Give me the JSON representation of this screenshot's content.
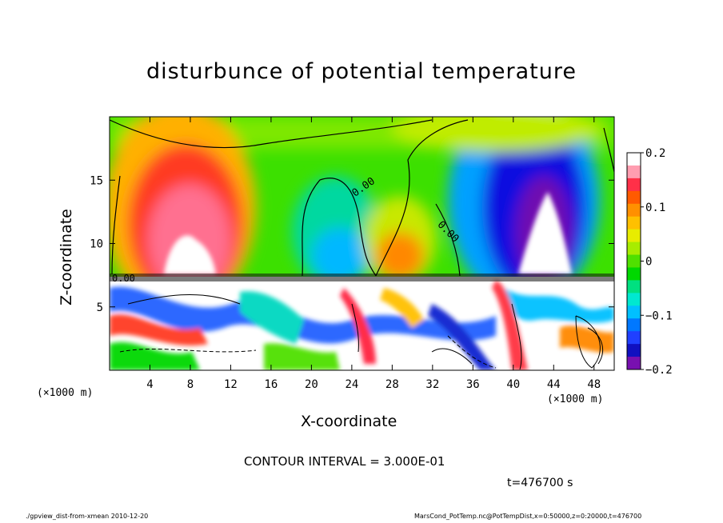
{
  "chart_data": {
    "type": "heatmap",
    "title": "disturbunce of potential temperature",
    "xlabel": "X-coordinate",
    "ylabel": "Z-coordinate",
    "x_unit_label": "(×1000 m)",
    "z_unit_label": "(×1000 m)",
    "xlim": [
      0,
      50
    ],
    "ylim": [
      0,
      20
    ],
    "x_ticks": [
      4,
      8,
      12,
      16,
      20,
      24,
      28,
      32,
      36,
      40,
      44,
      48
    ],
    "y_ticks": [
      5,
      10,
      15
    ],
    "colorbar": {
      "range": [
        -0.2,
        0.2
      ],
      "ticks": [
        0.2,
        0.1,
        0,
        -0.1,
        -0.2
      ],
      "tick_labels": [
        "0.2",
        "0.1",
        "0",
        "−0.1",
        "−0.2"
      ],
      "colors": [
        "#ffffff",
        "#ff9db0",
        "#ff3048",
        "#ff5a00",
        "#ff9000",
        "#ffc000",
        "#e8ec00",
        "#a8ec00",
        "#50e000",
        "#00d800",
        "#00e080",
        "#00e8d0",
        "#00c0ff",
        "#0078ff",
        "#2040ff",
        "#1010c0",
        "#7810b0"
      ]
    },
    "contour_labels": [
      "0.00",
      "0.00",
      "0.00"
    ],
    "contour_interval": "CONTOUR INTERVAL = 3.000E-01",
    "time": "t=476700 s",
    "footer_left": "./gpview_dist-from-xmean   2010-12-20",
    "footer_right": "MarsCond_PotTemp.nc@PotTempDist,x=0:50000,z=0:20000,t=476700"
  }
}
